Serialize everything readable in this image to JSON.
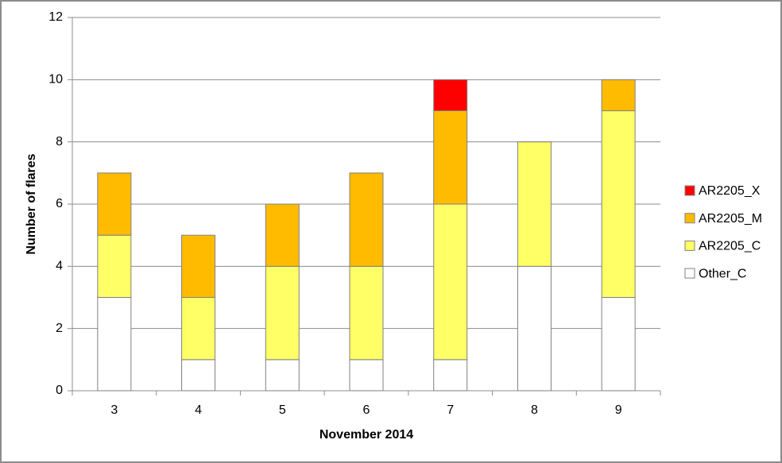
{
  "chart_data": {
    "type": "stacked_bar",
    "xlabel": "November 2014",
    "ylabel": "Number of flares",
    "categories": [
      "3",
      "4",
      "5",
      "6",
      "7",
      "8",
      "9"
    ],
    "series": [
      {
        "name": "Other_C",
        "color": "#ffffff",
        "values": [
          3,
          1,
          1,
          1,
          1,
          4,
          3
        ]
      },
      {
        "name": "AR2205_C",
        "color": "#ffff66",
        "values": [
          2,
          2,
          3,
          3,
          5,
          4,
          6
        ]
      },
      {
        "name": "AR2205_M",
        "color": "#ffbb00",
        "values": [
          2,
          2,
          2,
          3,
          3,
          0,
          1
        ]
      },
      {
        "name": "AR2205_X",
        "color": "#ff0000",
        "values": [
          0,
          0,
          0,
          0,
          1,
          0,
          0
        ]
      }
    ],
    "ylim": [
      0,
      12
    ],
    "yticks": [
      0,
      2,
      4,
      6,
      8,
      10,
      12
    ],
    "grid": true,
    "legend": "right"
  }
}
